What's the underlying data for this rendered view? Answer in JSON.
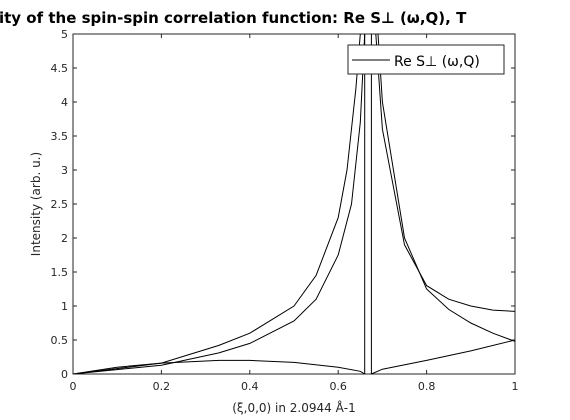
{
  "chart_data": {
    "type": "line",
    "title": "ity of the spin-spin correlation function: Re S⊥ (ω,Q), T",
    "xlabel": "(ξ,0,0) in 2.0944 Å-1",
    "ylabel": "Intensity (arb. u.)",
    "xlim": [
      0,
      1
    ],
    "ylim": [
      0,
      5
    ],
    "x_ticks": [
      "0",
      "0.2",
      "0.4",
      "0.6",
      "0.8",
      "1"
    ],
    "y_ticks": [
      "0",
      "0.5",
      "1",
      "1.5",
      "2",
      "2.5",
      "3",
      "3.5",
      "4",
      "4.5",
      "5"
    ],
    "grid": false,
    "legend_position": "top-right",
    "legend": [
      "Re S⊥ (ω,Q)"
    ],
    "series": [
      {
        "name": "Re S⊥ (ω,Q)",
        "branches": [
          {
            "x": [
              0,
              0.2,
              0.33,
              0.4,
              0.5,
              0.55,
              0.6,
              0.62,
              0.64,
              0.65
            ],
            "y": [
              0,
              0.16,
              0.42,
              0.6,
              1.0,
              1.45,
              2.3,
              3.0,
              4.2,
              5.0
            ]
          },
          {
            "x": [
              0,
              0.2,
              0.33,
              0.4,
              0.5,
              0.55,
              0.6,
              0.63,
              0.65,
              0.66
            ],
            "y": [
              0,
              0.13,
              0.31,
              0.45,
              0.78,
              1.1,
              1.75,
              2.5,
              3.7,
              5.0
            ]
          },
          {
            "x": [
              0,
              0.1,
              0.2,
              0.33,
              0.4,
              0.5,
              0.6,
              0.65,
              0.66
            ],
            "y": [
              0,
              0.1,
              0.16,
              0.2,
              0.2,
              0.17,
              0.1,
              0.04,
              0
            ]
          },
          {
            "x": [
              0.66,
              0.66
            ],
            "y": [
              0,
              5.0
            ]
          },
          {
            "x": [
              0.675,
              0.675
            ],
            "y": [
              0,
              5.0
            ]
          },
          {
            "x": [
              0.675,
              0.7,
              0.8,
              0.9,
              1.0
            ],
            "y": [
              0,
              0.07,
              0.2,
              0.34,
              0.5
            ]
          },
          {
            "x": [
              0.685,
              0.7,
              0.75,
              0.8,
              0.85,
              0.9,
              0.95,
              1.0
            ],
            "y": [
              5.0,
              3.6,
              1.9,
              1.3,
              1.1,
              1.0,
              0.94,
              0.92
            ]
          },
          {
            "x": [
              0.69,
              0.7,
              0.75,
              0.8,
              0.85,
              0.9,
              0.95,
              1.0
            ],
            "y": [
              5.0,
              4.0,
              2.0,
              1.25,
              0.95,
              0.75,
              0.6,
              0.48
            ]
          }
        ]
      }
    ]
  }
}
